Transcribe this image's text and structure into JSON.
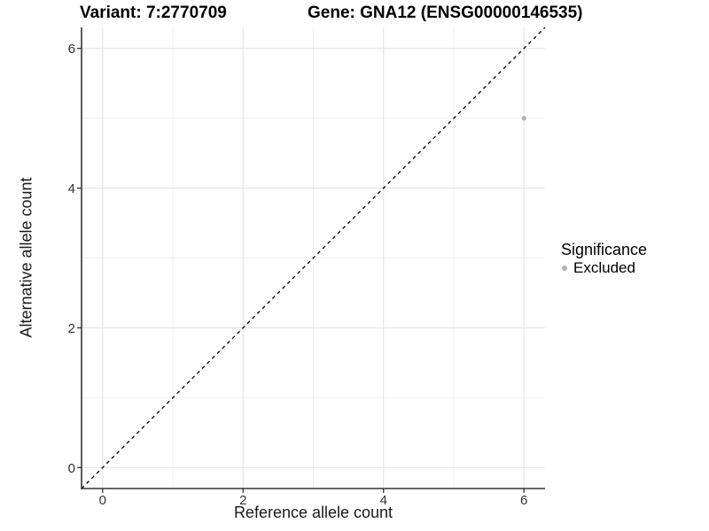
{
  "titles": {
    "variant": "Variant: 7:2770709",
    "gene": "Gene: GNA12 (ENSG00000146535)"
  },
  "chart_data": {
    "type": "scatter",
    "title": "Variant: 7:2770709    Gene: GNA12 (ENSG00000146535)",
    "xlabel": "Reference allele count",
    "ylabel": "Alternative allele count",
    "xlim": [
      -0.3,
      6.3
    ],
    "ylim": [
      -0.3,
      6.3
    ],
    "xticks": [
      0,
      2,
      4,
      6
    ],
    "yticks": [
      0,
      2,
      4,
      6
    ],
    "x_minor": [
      1,
      3,
      5
    ],
    "y_minor": [
      1,
      3,
      5
    ],
    "grid": true,
    "points": [
      {
        "x": 6,
        "y": 5,
        "series": "Excluded"
      }
    ],
    "reference_line": {
      "type": "identity",
      "style": "dashed",
      "color": "#000000"
    },
    "legend": {
      "position": "right",
      "title": "Significance",
      "items": [
        {
          "label": "Excluded",
          "color": "#b3b3b3"
        }
      ]
    },
    "colors": {
      "point": "#b3b3b3",
      "grid_major": "#e4e4e4",
      "grid_minor": "#f0f0f0",
      "axis_line": "#333333",
      "tick_text": "#333333",
      "background": "#ffffff"
    }
  }
}
